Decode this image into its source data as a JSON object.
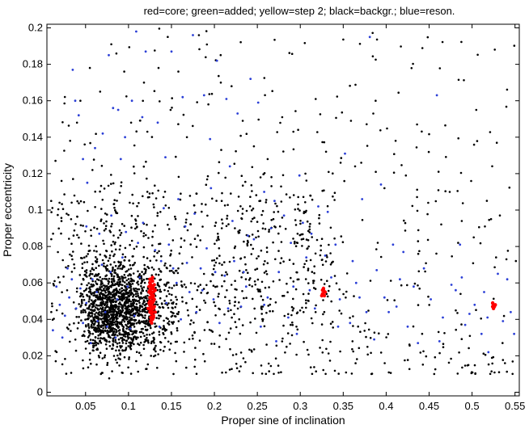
{
  "chart_data": {
    "type": "scatter",
    "title": "red=core; green=added; yellow=step 2; black=backgr.; blue=reson.",
    "xlabel": "Proper sine of inclination",
    "ylabel": "Proper eccentricity",
    "xlim": [
      0.005,
      0.555
    ],
    "ylim": [
      -0.002,
      0.202
    ],
    "xticks": [
      0.05,
      0.1,
      0.15,
      0.2,
      0.25,
      0.3,
      0.35,
      0.4,
      0.45,
      0.5,
      0.55
    ],
    "xtick_labels": [
      "0.05",
      "0.1",
      "0.15",
      "0.2",
      "0.25",
      "0.3",
      "0.35",
      "0.4",
      "0.45",
      "0.5",
      "0.55"
    ],
    "yticks": [
      0,
      0.02,
      0.04,
      0.06,
      0.08,
      0.1,
      0.12,
      0.14,
      0.16,
      0.18,
      0.2
    ],
    "ytick_labels": [
      "0",
      "0.02",
      "0.04",
      "0.06",
      "0.08",
      "0.1",
      "0.12",
      "0.14",
      "0.16",
      "0.18",
      "0.2"
    ],
    "grid": false,
    "legend": "none",
    "colors": {
      "core": "#ff0000",
      "background": "#000000",
      "resonant": "#2b3fd6"
    },
    "series": [
      {
        "key": "core",
        "color": "#ff0000",
        "points": [
          [
            0.125,
            0.06
          ],
          [
            0.126,
            0.058
          ],
          [
            0.127,
            0.055
          ],
          [
            0.128,
            0.053
          ],
          [
            0.125,
            0.05
          ],
          [
            0.126,
            0.048
          ],
          [
            0.127,
            0.046
          ],
          [
            0.128,
            0.044
          ],
          [
            0.129,
            0.042
          ],
          [
            0.126,
            0.041
          ],
          [
            0.127,
            0.052
          ],
          [
            0.125,
            0.056
          ],
          [
            0.128,
            0.058
          ],
          [
            0.129,
            0.05
          ],
          [
            0.126,
            0.054
          ],
          [
            0.127,
            0.047
          ],
          [
            0.125,
            0.044
          ],
          [
            0.128,
            0.061
          ],
          [
            0.129,
            0.055
          ],
          [
            0.126,
            0.059
          ],
          [
            0.127,
            0.043
          ],
          [
            0.128,
            0.049
          ],
          [
            0.129,
            0.046
          ],
          [
            0.125,
            0.052
          ],
          [
            0.126,
            0.045
          ],
          [
            0.127,
            0.057
          ],
          [
            0.128,
            0.04
          ],
          [
            0.129,
            0.053
          ],
          [
            0.13,
            0.051
          ],
          [
            0.124,
            0.049
          ],
          [
            0.13,
            0.047
          ],
          [
            0.124,
            0.055
          ],
          [
            0.131,
            0.044
          ],
          [
            0.123,
            0.046
          ],
          [
            0.131,
            0.056
          ],
          [
            0.124,
            0.058
          ],
          [
            0.13,
            0.059
          ],
          [
            0.127,
            0.062
          ],
          [
            0.128,
            0.063
          ],
          [
            0.126,
            0.039
          ],
          [
            0.127,
            0.038
          ],
          [
            0.129,
            0.041
          ],
          [
            0.125,
            0.062
          ],
          [
            0.128,
            0.046
          ],
          [
            0.126,
            0.05
          ],
          [
            0.127,
            0.049
          ],
          [
            0.128,
            0.052
          ],
          [
            0.126,
            0.047
          ],
          [
            0.129,
            0.057
          ],
          [
            0.125,
            0.048
          ],
          [
            0.326,
            0.054
          ],
          [
            0.327,
            0.056
          ],
          [
            0.328,
            0.055
          ],
          [
            0.325,
            0.053
          ],
          [
            0.327,
            0.057
          ],
          [
            0.328,
            0.053
          ],
          [
            0.326,
            0.056
          ],
          [
            0.329,
            0.055
          ],
          [
            0.524,
            0.047
          ],
          [
            0.525,
            0.048
          ],
          [
            0.526,
            0.047
          ],
          [
            0.524,
            0.049
          ],
          [
            0.527,
            0.048
          ],
          [
            0.525,
            0.046
          ]
        ]
      },
      {
        "key": "resonant",
        "color": "#2b3fd6",
        "points": [
          [
            0.035,
            0.177
          ],
          [
            0.038,
            0.16
          ],
          [
            0.042,
            0.152
          ],
          [
            0.047,
            0.128
          ],
          [
            0.052,
            0.115
          ],
          [
            0.061,
            0.134
          ],
          [
            0.07,
            0.142
          ],
          [
            0.077,
            0.185
          ],
          [
            0.082,
            0.156
          ],
          [
            0.088,
            0.155
          ],
          [
            0.091,
            0.128
          ],
          [
            0.096,
            0.14
          ],
          [
            0.104,
            0.16
          ],
          [
            0.109,
            0.198
          ],
          [
            0.116,
            0.151
          ],
          [
            0.12,
            0.187
          ],
          [
            0.134,
            0.148
          ],
          [
            0.143,
            0.129
          ],
          [
            0.15,
            0.187
          ],
          [
            0.163,
            0.162
          ],
          [
            0.175,
            0.196
          ],
          [
            0.188,
            0.163
          ],
          [
            0.195,
            0.139
          ],
          [
            0.203,
            0.182
          ],
          [
            0.214,
            0.161
          ],
          [
            0.218,
            0.124
          ],
          [
            0.227,
            0.153
          ],
          [
            0.242,
            0.172
          ],
          [
            0.251,
            0.159
          ],
          [
            0.258,
            0.11
          ],
          [
            0.27,
            0.105
          ],
          [
            0.281,
            0.097
          ],
          [
            0.299,
            0.119
          ],
          [
            0.313,
            0.087
          ],
          [
            0.321,
            0.102
          ],
          [
            0.332,
            0.099
          ],
          [
            0.341,
            0.081
          ],
          [
            0.352,
            0.131
          ],
          [
            0.372,
            0.106
          ],
          [
            0.381,
            0.195
          ],
          [
            0.394,
            0.114
          ],
          [
            0.408,
            0.081
          ],
          [
            0.42,
            0.077
          ],
          [
            0.444,
            0.068
          ],
          [
            0.459,
            0.163
          ],
          [
            0.476,
            0.059
          ],
          [
            0.486,
            0.081
          ],
          [
            0.497,
            0.043
          ],
          [
            0.511,
            0.032
          ],
          [
            0.519,
            0.022
          ],
          [
            0.53,
            0.065
          ],
          [
            0.541,
            0.062
          ],
          [
            0.549,
            0.032
          ],
          [
            0.012,
            0.034
          ],
          [
            0.02,
            0.048
          ],
          [
            0.026,
            0.042
          ],
          [
            0.031,
            0.052
          ],
          [
            0.039,
            0.046
          ],
          [
            0.044,
            0.057
          ],
          [
            0.051,
            0.049
          ],
          [
            0.058,
            0.062
          ],
          [
            0.064,
            0.039
          ],
          [
            0.069,
            0.07
          ],
          [
            0.073,
            0.044
          ],
          [
            0.079,
            0.066
          ],
          [
            0.085,
            0.03
          ],
          [
            0.093,
            0.074
          ],
          [
            0.099,
            0.058
          ],
          [
            0.107,
            0.042
          ],
          [
            0.113,
            0.063
          ],
          [
            0.138,
            0.072
          ],
          [
            0.144,
            0.049
          ],
          [
            0.147,
            0.081
          ],
          [
            0.156,
            0.06
          ],
          [
            0.161,
            0.04
          ],
          [
            0.166,
            0.091
          ],
          [
            0.171,
            0.055
          ],
          [
            0.179,
            0.044
          ],
          [
            0.184,
            0.068
          ],
          [
            0.191,
            0.079
          ],
          [
            0.199,
            0.051
          ],
          [
            0.206,
            0.038
          ],
          [
            0.212,
            0.064
          ],
          [
            0.223,
            0.072
          ],
          [
            0.231,
            0.047
          ],
          [
            0.237,
            0.058
          ],
          [
            0.246,
            0.084
          ],
          [
            0.254,
            0.036
          ],
          [
            0.262,
            0.052
          ],
          [
            0.275,
            0.066
          ],
          [
            0.286,
            0.041
          ],
          [
            0.292,
            0.058
          ],
          [
            0.307,
            0.074
          ],
          [
            0.317,
            0.046
          ],
          [
            0.336,
            0.063
          ],
          [
            0.346,
            0.051
          ],
          [
            0.358,
            0.038
          ],
          [
            0.365,
            0.06
          ],
          [
            0.377,
            0.044
          ],
          [
            0.386,
            0.029
          ],
          [
            0.398,
            0.052
          ],
          [
            0.412,
            0.047
          ],
          [
            0.425,
            0.036
          ],
          [
            0.437,
            0.027
          ],
          [
            0.452,
            0.051
          ],
          [
            0.466,
            0.041
          ],
          [
            0.481,
            0.056
          ],
          [
            0.492,
            0.037
          ],
          [
            0.503,
            0.048
          ],
          [
            0.514,
            0.055
          ],
          [
            0.536,
            0.039
          ],
          [
            0.545,
            0.044
          ],
          [
            0.051,
            0.091
          ],
          [
            0.066,
            0.087
          ],
          [
            0.08,
            0.097
          ],
          [
            0.097,
            0.088
          ],
          [
            0.117,
            0.093
          ],
          [
            0.141,
            0.101
          ],
          [
            0.158,
            0.106
          ],
          [
            0.177,
            0.098
          ],
          [
            0.196,
            0.112
          ],
          [
            0.221,
            0.094
          ],
          [
            0.239,
            0.086
          ],
          [
            0.266,
            0.09
          ],
          [
            0.289,
            0.082
          ],
          [
            0.303,
            0.093
          ],
          [
            0.329,
            0.075
          ],
          [
            0.361,
            0.072
          ],
          [
            0.389,
            0.067
          ],
          [
            0.416,
            0.062
          ],
          [
            0.016,
            0.058
          ],
          [
            0.023,
            0.03
          ],
          [
            0.029,
            0.068
          ],
          [
            0.034,
            0.062
          ],
          [
            0.047,
            0.038
          ],
          [
            0.056,
            0.027
          ],
          [
            0.063,
            0.055
          ],
          [
            0.075,
            0.036
          ],
          [
            0.087,
            0.051
          ],
          [
            0.102,
            0.035
          ],
          [
            0.111,
            0.082
          ],
          [
            0.131,
            0.078
          ],
          [
            0.136,
            0.036
          ],
          [
            0.152,
            0.068
          ],
          [
            0.168,
            0.071
          ],
          [
            0.186,
            0.056
          ],
          [
            0.201,
            0.066
          ],
          [
            0.216,
            0.046
          ],
          [
            0.234,
            0.066
          ],
          [
            0.258,
            0.048
          ],
          [
            0.272,
            0.028
          ],
          [
            0.296,
            0.032
          ],
          [
            0.311,
            0.056
          ],
          [
            0.344,
            0.036
          ],
          [
            0.369,
            0.052
          ],
          [
            0.403,
            0.044
          ],
          [
            0.432,
            0.058
          ],
          [
            0.462,
            0.028
          ],
          [
            0.488,
            0.063
          ],
          [
            0.518,
            0.041
          ]
        ]
      }
    ],
    "background_series": {
      "key": "background",
      "color": "#000000",
      "count": 2600,
      "points": [
        [
          0.032,
          0.138
        ],
        [
          0.04,
          0.148
        ],
        [
          0.044,
          0.16
        ],
        [
          0.055,
          0.178
        ],
        [
          0.058,
          0.122
        ],
        [
          0.067,
          0.165
        ],
        [
          0.08,
          0.191
        ],
        [
          0.095,
          0.176
        ],
        [
          0.103,
          0.148
        ],
        [
          0.118,
          0.17
        ],
        [
          0.122,
          0.143
        ],
        [
          0.135,
          0.178
        ],
        [
          0.149,
          0.155
        ],
        [
          0.158,
          0.176
        ],
        [
          0.168,
          0.14
        ],
        [
          0.182,
          0.196
        ],
        [
          0.193,
          0.158
        ],
        [
          0.208,
          0.133
        ],
        [
          0.22,
          0.168
        ],
        [
          0.233,
          0.149
        ],
        [
          0.246,
          0.135
        ],
        [
          0.262,
          0.128
        ],
        [
          0.279,
          0.151
        ],
        [
          0.292,
          0.143
        ],
        [
          0.306,
          0.12
        ],
        [
          0.318,
          0.161
        ],
        [
          0.33,
          0.132
        ],
        [
          0.347,
          0.126
        ],
        [
          0.359,
          0.149
        ],
        [
          0.371,
          0.126
        ],
        [
          0.385,
          0.153
        ],
        [
          0.398,
          0.112
        ],
        [
          0.411,
          0.138
        ],
        [
          0.423,
          0.119
        ],
        [
          0.436,
          0.147
        ],
        [
          0.449,
          0.104
        ],
        [
          0.461,
          0.121
        ],
        [
          0.474,
          0.11
        ],
        [
          0.488,
          0.094
        ],
        [
          0.502,
          0.085
        ],
        [
          0.515,
          0.091
        ],
        [
          0.528,
          0.074
        ],
        [
          0.54,
          0.073
        ],
        [
          0.551,
          0.072
        ],
        [
          0.01,
          0.105
        ],
        [
          0.015,
          0.127
        ],
        [
          0.022,
          0.116
        ],
        [
          0.028,
          0.098
        ],
        [
          0.037,
          0.108
        ],
        [
          0.049,
          0.136
        ]
      ]
    }
  }
}
